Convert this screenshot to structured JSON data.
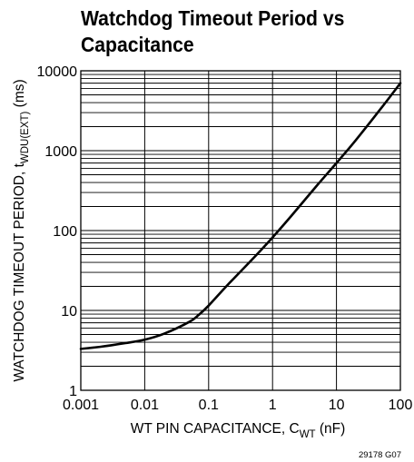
{
  "chart_data": {
    "type": "line",
    "title_lines": [
      "Watchdog Timeout Period vs",
      "Capacitance"
    ],
    "xlabel": {
      "main": "WT PIN CAPACITANCE, C",
      "sub": "WT",
      "tail": " (nF)"
    },
    "ylabel": {
      "main": "WATCHDOG TIMEOUT PERIOD, t",
      "sub": "WDU(EXT)",
      "tail": " (ms)"
    },
    "xscale": "log",
    "yscale": "log",
    "xlim": [
      0.001,
      100
    ],
    "ylim": [
      1,
      10000
    ],
    "x_ticks": [
      0.001,
      0.01,
      0.1,
      1,
      10,
      100
    ],
    "x_tick_labels": [
      "0.001",
      "0.01",
      "0.1",
      "1",
      "10",
      "100"
    ],
    "y_ticks": [
      1,
      10,
      100,
      1000,
      10000
    ],
    "y_tick_labels": [
      "1",
      "10",
      "100",
      "1000",
      "10000"
    ],
    "grid": {
      "x": "decades",
      "y": "minor"
    },
    "series": [
      {
        "x": [
          0.001,
          0.002,
          0.005,
          0.01,
          0.02,
          0.05,
          0.07,
          0.1,
          0.2,
          0.5,
          1,
          2,
          5,
          10,
          20,
          50,
          100
        ],
        "values": [
          3.3,
          3.5,
          3.9,
          4.3,
          5.1,
          7.2,
          8.8,
          11.5,
          21,
          45,
          82,
          155,
          370,
          700,
          1350,
          3400,
          7000
        ]
      }
    ],
    "footnote": "29178 G07"
  }
}
